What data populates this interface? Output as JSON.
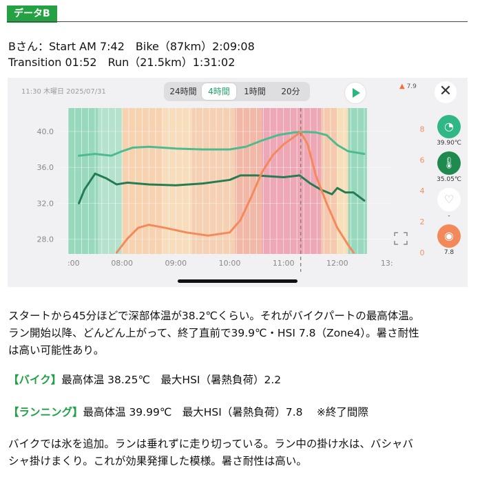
{
  "header": {
    "tag": "データB"
  },
  "summary": {
    "line1": "Bさん：Start AM 7:42　Bike（87km）2:09:08",
    "line2": "Transition 01:52　Run（21.5km）1:31:02"
  },
  "app": {
    "timestamp": "11:30 木曜日 2025/07/31",
    "ranges": [
      "24時間",
      "4時間",
      "1時間",
      "20分"
    ],
    "selected_range": "4時間",
    "hsi_badge": "7.9",
    "close_glyph": "✕",
    "metrics": [
      {
        "icon": "core-temp-icon",
        "value": "39.90℃",
        "color": "#2fb785"
      },
      {
        "icon": "thermometer-icon",
        "value": "35.05℃",
        "color": "#1e8a4e"
      },
      {
        "icon": "heart-rate-icon",
        "value": "-",
        "color": "#ffffff"
      },
      {
        "icon": "flame-icon",
        "value": "7.8",
        "color": "#f3885a"
      }
    ]
  },
  "chart_data": {
    "type": "line",
    "x_tick_labels": [
      ":00",
      "08:00",
      "09:00",
      "10:00",
      "11:00",
      "12:00",
      "13:"
    ],
    "y_left_ticks": [
      "40.0",
      "36.0",
      "32.0",
      "28.0"
    ],
    "y_right_ticks": [
      "8",
      "6",
      "4",
      "2",
      "0"
    ],
    "y_left_range": [
      26.5,
      42.0
    ],
    "y_right_range": [
      0,
      9
    ],
    "x_range_hours": [
      7.0,
      13.0
    ],
    "cursor_hour": 11.32,
    "series": [
      {
        "color": "#4dbb8f",
        "axis": "left",
        "x": [
          7.2,
          7.5,
          7.8,
          8.0,
          8.2,
          8.5,
          9.0,
          9.5,
          10.0,
          10.3,
          10.6,
          10.9,
          11.2,
          11.4,
          11.6,
          11.8,
          12.0,
          12.2,
          12.5
        ],
        "values": [
          37.3,
          37.5,
          37.3,
          37.8,
          38.2,
          38.3,
          38.1,
          38.0,
          38.0,
          38.3,
          39.0,
          39.6,
          39.9,
          39.95,
          39.9,
          39.6,
          38.5,
          37.8,
          37.5
        ]
      },
      {
        "color": "#247c50",
        "axis": "left",
        "x": [
          7.2,
          7.3,
          7.5,
          7.7,
          7.9,
          8.1,
          8.5,
          9.0,
          9.5,
          10.0,
          10.2,
          10.5,
          11.0,
          11.3,
          11.5,
          11.7,
          11.9,
          12.0,
          12.15,
          12.3,
          12.5
        ],
        "values": [
          32.0,
          33.5,
          35.3,
          34.8,
          34.1,
          34.3,
          34.1,
          34.0,
          34.2,
          34.6,
          35.1,
          35.1,
          34.9,
          35.1,
          34.2,
          33.5,
          33.0,
          33.7,
          33.2,
          33.2,
          32.3
        ]
      },
      {
        "color": "#f4895b",
        "axis": "right",
        "x": [
          7.9,
          8.1,
          8.3,
          8.5,
          8.8,
          9.2,
          9.6,
          10.0,
          10.2,
          10.4,
          10.6,
          10.8,
          11.0,
          11.2,
          11.32,
          11.45,
          11.6,
          11.8,
          12.0,
          12.2,
          12.3
        ],
        "values": [
          0,
          0.9,
          1.6,
          1.8,
          1.6,
          1.3,
          1.1,
          1.3,
          2.1,
          3.6,
          5.2,
          6.3,
          7.0,
          7.5,
          7.8,
          7.0,
          5.0,
          3.2,
          1.6,
          0.5,
          0
        ]
      }
    ]
  },
  "body": {
    "p1_l1": "スタートから45分ほどで深部体温が38.2℃くらい。それがバイクパートの最高体温。",
    "p1_l2": "ラン開始以降、どんどん上がって、終了直前で39.9℃・HSI 7.8（Zone4）。暑さ耐性",
    "p1_l3": "は高い可能性あり。",
    "bike_label": "【バイク】",
    "bike_text": "最高体温 38.25℃　最大HSI（暑熱負荷）2.2",
    "run_label": "【ランニング】",
    "run_text": "最高体温 39.99℃　最大HSI（暑熱負荷）7.8　 ※終了間際",
    "p4_l1": "バイクでは氷を追加。ランは垂れずに走り切っている。ラン中の掛け水は、バシャバ",
    "p4_l2": "シャ掛けまくり。これが効果発揮した模様。暑さ耐性は高い。"
  }
}
